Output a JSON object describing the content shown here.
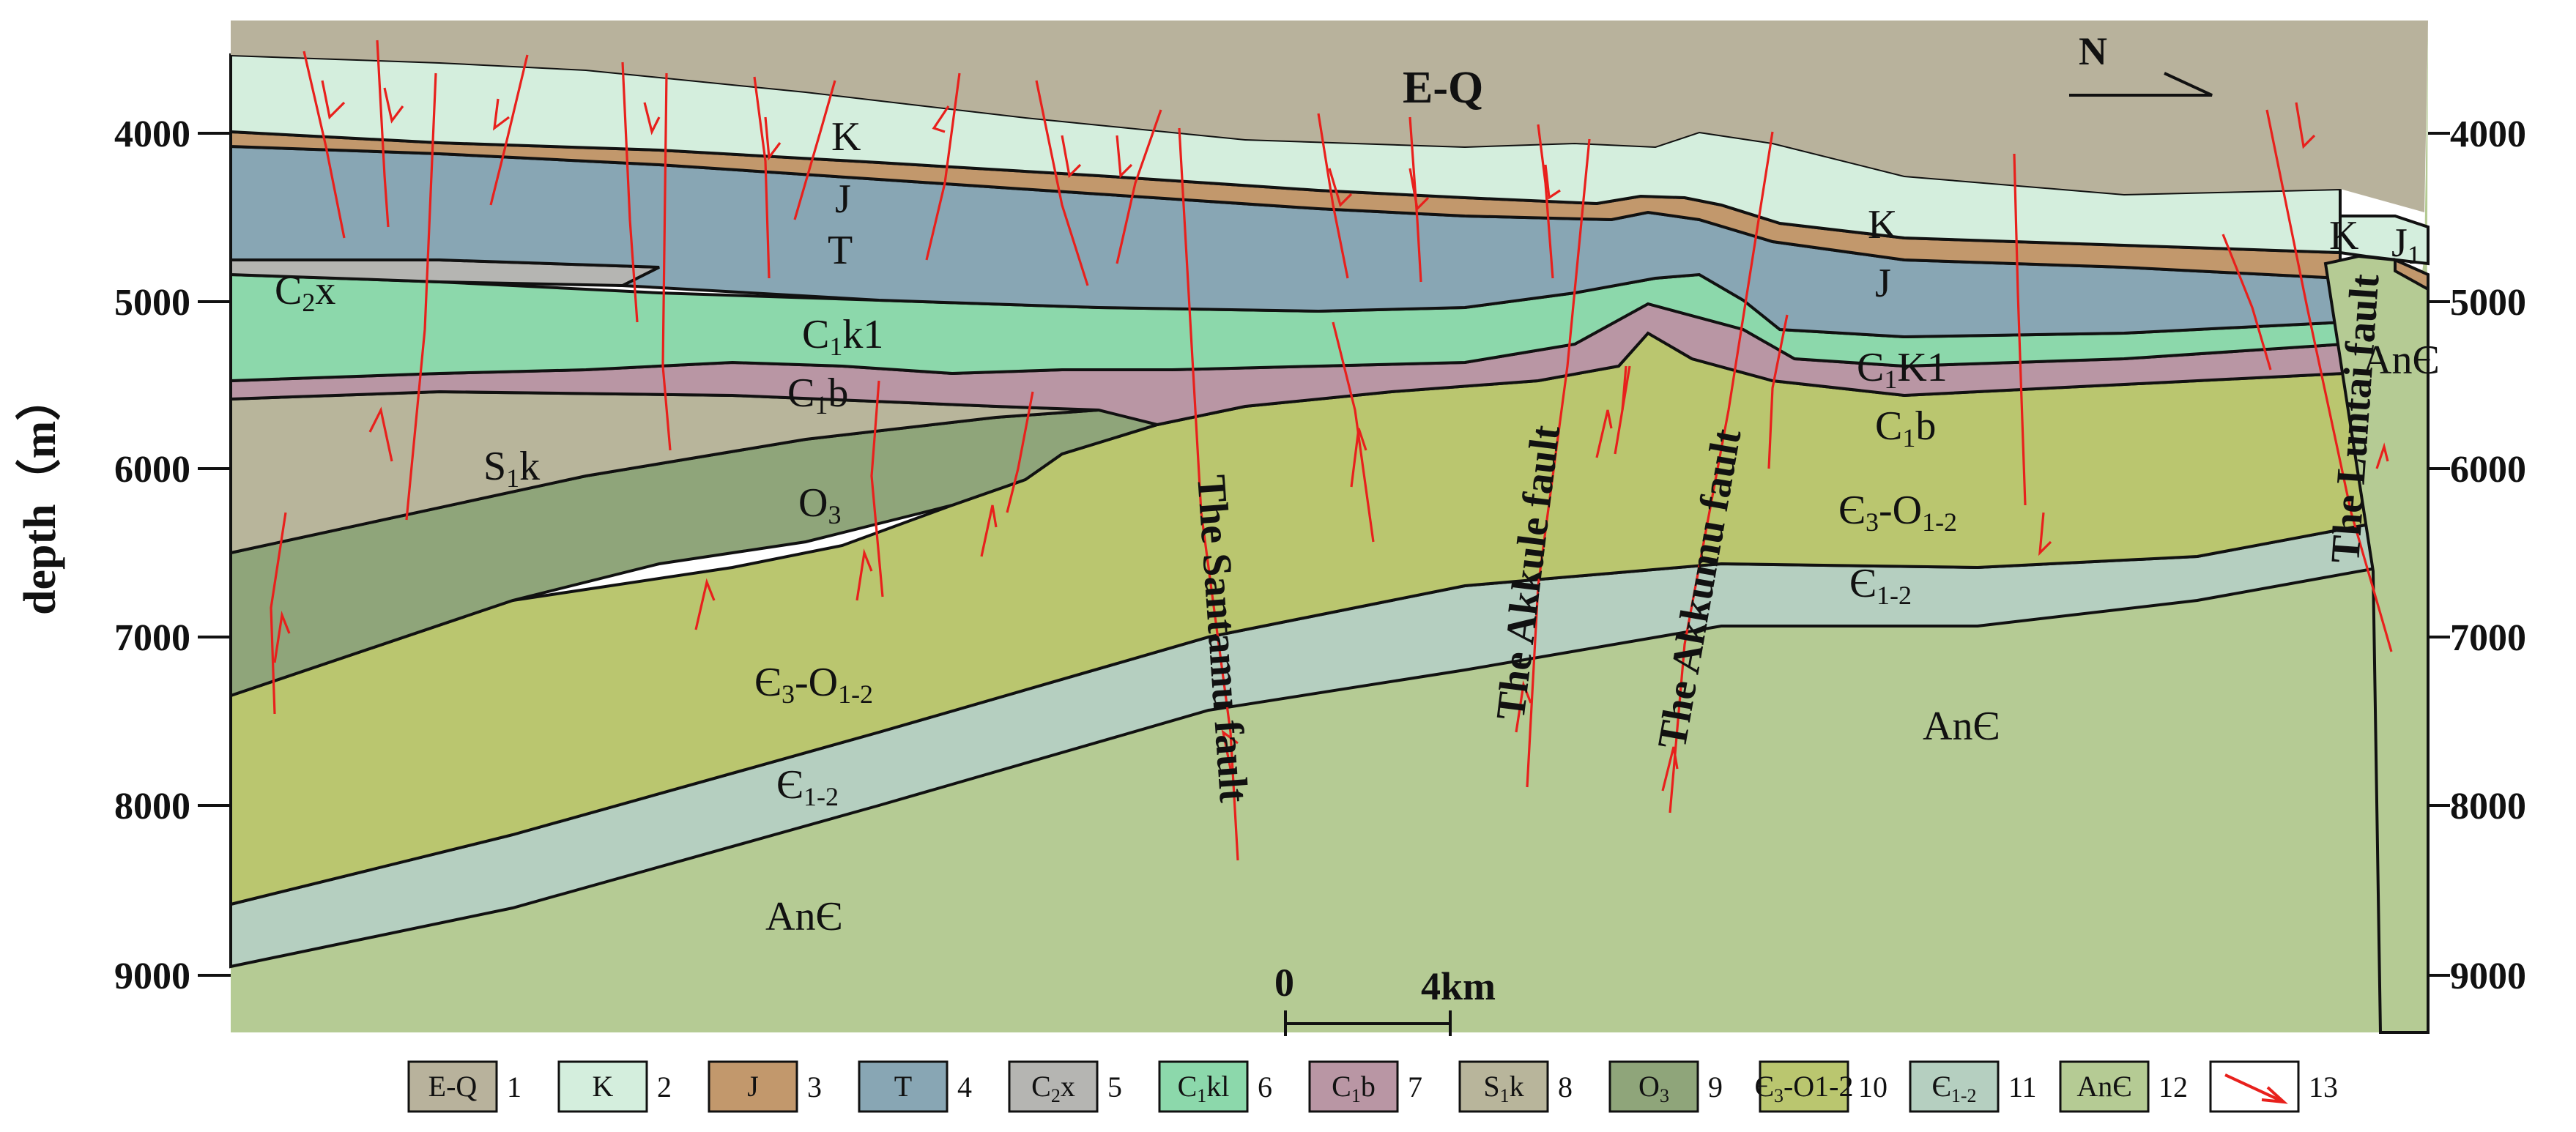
{
  "axis": {
    "y_label": "depth（m）",
    "ticks": [
      "4000",
      "5000",
      "6000",
      "7000",
      "8000",
      "9000"
    ]
  },
  "scale_bar": {
    "zero": "0",
    "end": "4km"
  },
  "north": "N",
  "units": {
    "eq": "E-Q",
    "k_main": "K",
    "k_right": "K",
    "k_far": "K",
    "j_main": "J",
    "j_right": "J",
    "j1": "J",
    "j1_sub": "1",
    "t_main": "T",
    "c2x": "C",
    "c2x_sub": "2",
    "c2x_tail": "x",
    "c1k1_left": "C",
    "c1k1_left_sub": "1",
    "c1k1_left_tail": "k1",
    "c1k1_right": "C",
    "c1k1_right_sub": "1",
    "c1k1_right_tail": "K1",
    "c1b_left": "C",
    "c1b_left_sub": "1",
    "c1b_left_tail": "b",
    "c1b_right": "C",
    "c1b_right_sub": "1",
    "c1b_right_tail": "b",
    "s1k": "S",
    "s1k_sub": "1",
    "s1k_tail": "k",
    "o3": "O",
    "o3_sub": "3",
    "e3o12_left": "Є",
    "e3o12_left_sub1": "3",
    "e3o12_left_mid": "-O",
    "e3o12_left_sub2": "1-2",
    "e3o12_right": "Є",
    "e3o12_right_sub1": "3",
    "e3o12_right_mid": "-O",
    "e3o12_right_sub2": "1-2",
    "e12_left": "Є",
    "e12_left_sub": "1-2",
    "e12_right": "Є",
    "e12_right_sub": "1-2",
    "ane_left": "AnЄ",
    "ane_mid": "AnЄ",
    "ane_right": "AnЄ"
  },
  "faults": {
    "santamu": "The Santamu fault",
    "akkule": "The Akkule fault",
    "akkumu": "The Akkumu fault",
    "luntai": "The Luntai fault"
  },
  "legend": [
    {
      "label": "E-Q",
      "sub": "",
      "tail": "",
      "num": "1",
      "color": "#b8b29c"
    },
    {
      "label": "K",
      "sub": "",
      "tail": "",
      "num": "2",
      "color": "#d4eedd"
    },
    {
      "label": "J",
      "sub": "",
      "tail": "",
      "num": "3",
      "color": "#c2986c"
    },
    {
      "label": "T",
      "sub": "",
      "tail": "",
      "num": "4",
      "color": "#88a6b4"
    },
    {
      "label": "C",
      "sub": "2",
      "tail": "x",
      "num": "5",
      "color": "#b5b5b2"
    },
    {
      "label": "C",
      "sub": "1",
      "tail": "kl",
      "num": "6",
      "color": "#8cd8ab"
    },
    {
      "label": "C",
      "sub": "1",
      "tail": "b",
      "num": "7",
      "color": "#b996a4"
    },
    {
      "label": "S",
      "sub": "1",
      "tail": "k",
      "num": "8",
      "color": "#b8b59b"
    },
    {
      "label": "O",
      "sub": "3",
      "tail": "",
      "num": "9",
      "color": "#8fa57a"
    },
    {
      "label": "Є",
      "sub": "3",
      "tail": "-O1-2",
      "num": "10",
      "color": "#bac66f"
    },
    {
      "label": "Є",
      "sub": "1-2",
      "tail": "",
      "num": "11",
      "color": "#b5cfc0"
    },
    {
      "label": "AnЄ",
      "sub": "",
      "tail": "",
      "num": "12",
      "color": "#b5cb94"
    },
    {
      "label": "",
      "sub": "",
      "tail": "",
      "num": "13",
      "color": "#ffffff"
    }
  ],
  "colors": {
    "eq": "#b8b29c",
    "k": "#d4eedd",
    "j": "#c2986c",
    "t": "#88a6b4",
    "c2x": "#b5b5b2",
    "c1k1": "#8cd8ab",
    "c1b": "#b996a4",
    "s1k": "#b8b59b",
    "o3": "#8fa57a",
    "e3o12": "#bac66f",
    "e12": "#b5cfc0",
    "ane": "#b5cb94",
    "fault": "#e8201c"
  }
}
